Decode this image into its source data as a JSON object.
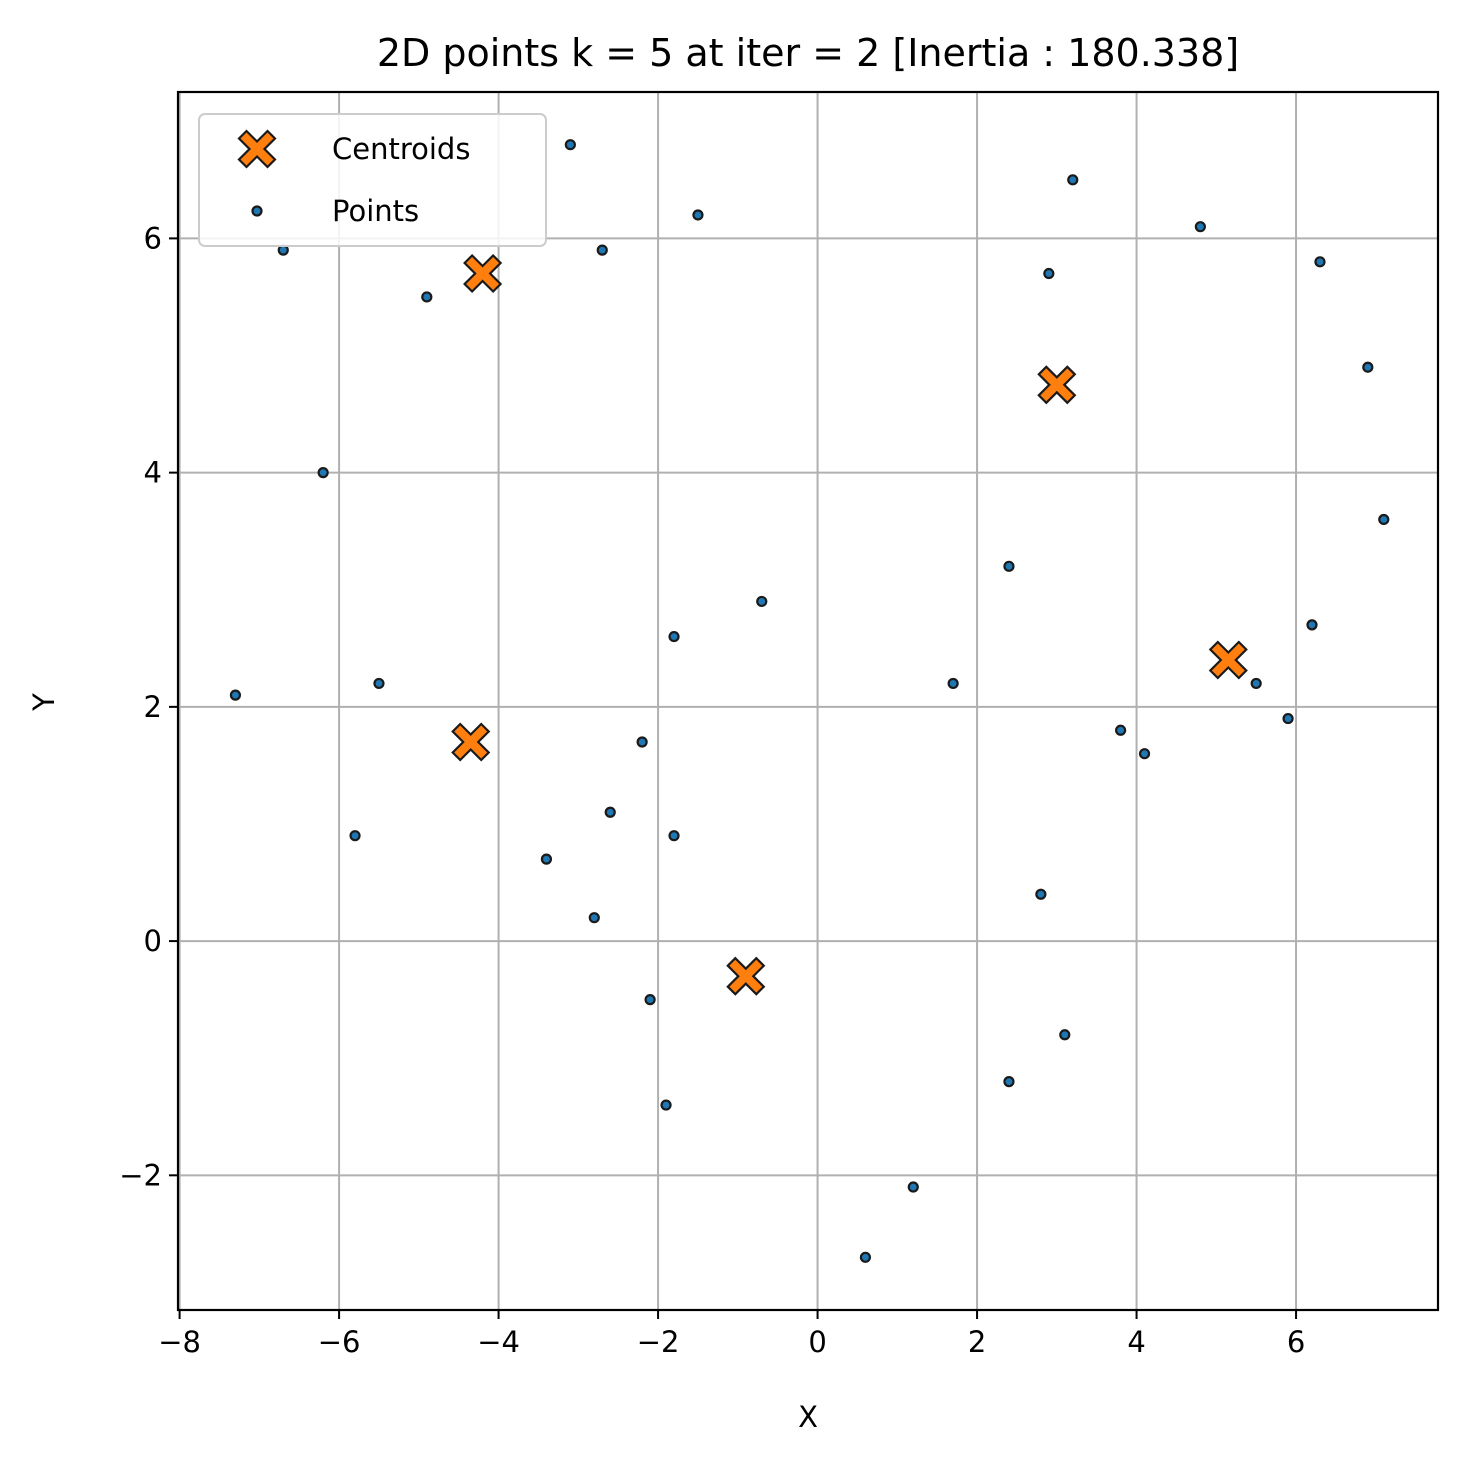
{
  "chart_data": {
    "type": "scatter",
    "title": "2D points k = 5 at iter = 2 [Inertia : 180.338]",
    "xlabel": "X",
    "ylabel": "Y",
    "xlim": [
      -8.02,
      7.78
    ],
    "ylim": [
      -3.15,
      7.25
    ],
    "xticks": [
      -8,
      -6,
      -4,
      -2,
      0,
      2,
      4,
      6
    ],
    "yticks": [
      -2,
      0,
      2,
      4,
      6
    ],
    "xtick_labels": [
      "−8",
      "−6",
      "−4",
      "−2",
      "0",
      "2",
      "4",
      "6"
    ],
    "ytick_labels": [
      "−2",
      "0",
      "2",
      "4",
      "6"
    ],
    "grid": true,
    "legend_position": "top-left",
    "colors": {
      "points": "#1f77b4",
      "centroids": "#ff7f0e",
      "edge": "#1a1a1a",
      "grid": "#b0b0b0"
    },
    "series": [
      {
        "name": "Centroids",
        "marker": "X",
        "points": [
          [
            -4.2,
            5.7
          ],
          [
            3.0,
            4.75
          ],
          [
            -4.35,
            1.7
          ],
          [
            5.15,
            2.4
          ],
          [
            -0.9,
            -0.3
          ]
        ]
      },
      {
        "name": "Points",
        "marker": "o",
        "points": [
          [
            -3.1,
            6.8
          ],
          [
            -6.7,
            5.9
          ],
          [
            -2.7,
            5.9
          ],
          [
            -1.5,
            6.2
          ],
          [
            -4.9,
            5.5
          ],
          [
            -6.2,
            4.0
          ],
          [
            3.2,
            6.5
          ],
          [
            4.8,
            6.1
          ],
          [
            2.9,
            5.7
          ],
          [
            6.3,
            5.8
          ],
          [
            6.9,
            4.9
          ],
          [
            7.1,
            3.6
          ],
          [
            2.4,
            3.2
          ],
          [
            -0.7,
            2.9
          ],
          [
            -1.8,
            2.6
          ],
          [
            6.2,
            2.7
          ],
          [
            -7.3,
            2.1
          ],
          [
            -5.5,
            2.2
          ],
          [
            1.7,
            2.2
          ],
          [
            5.5,
            2.2
          ],
          [
            5.9,
            1.9
          ],
          [
            3.8,
            1.8
          ],
          [
            4.1,
            1.6
          ],
          [
            -2.2,
            1.7
          ],
          [
            -2.6,
            1.1
          ],
          [
            -5.8,
            0.9
          ],
          [
            -1.8,
            0.9
          ],
          [
            -3.4,
            0.7
          ],
          [
            2.8,
            0.4
          ],
          [
            -2.8,
            0.2
          ],
          [
            -2.1,
            -0.5
          ],
          [
            3.1,
            -0.8
          ],
          [
            2.4,
            -1.2
          ],
          [
            -1.9,
            -1.4
          ],
          [
            1.2,
            -2.1
          ],
          [
            0.6,
            -2.7
          ]
        ]
      }
    ]
  }
}
